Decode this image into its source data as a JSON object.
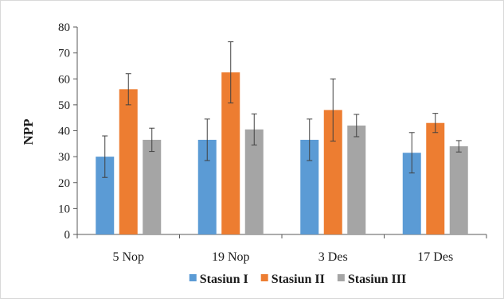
{
  "chart_data": {
    "type": "bar",
    "title": "",
    "xlabel": "",
    "ylabel": "NPP",
    "ylim": [
      0,
      80
    ],
    "yticks": [
      0,
      10,
      20,
      30,
      40,
      50,
      60,
      70,
      80
    ],
    "categories": [
      "5 Nop",
      "19 Nop",
      "3 Des",
      "17 Des"
    ],
    "series": [
      {
        "name": "Stasiun I",
        "color": "#5b9bd5",
        "values": [
          30,
          36.5,
          36.5,
          31.5
        ],
        "errors": [
          8,
          8,
          8,
          7.8
        ]
      },
      {
        "name": "Stasiun II",
        "color": "#ed7d31",
        "values": [
          56,
          62.5,
          48,
          43
        ],
        "errors": [
          6,
          11.8,
          12,
          3.7
        ]
      },
      {
        "name": "Stasiun III",
        "color": "#a5a5a5",
        "values": [
          36.5,
          40.5,
          42,
          34
        ],
        "errors": [
          4.5,
          6,
          4.3,
          2.2
        ]
      }
    ],
    "error_bars": true,
    "grid": false,
    "legend_position": "bottom"
  }
}
